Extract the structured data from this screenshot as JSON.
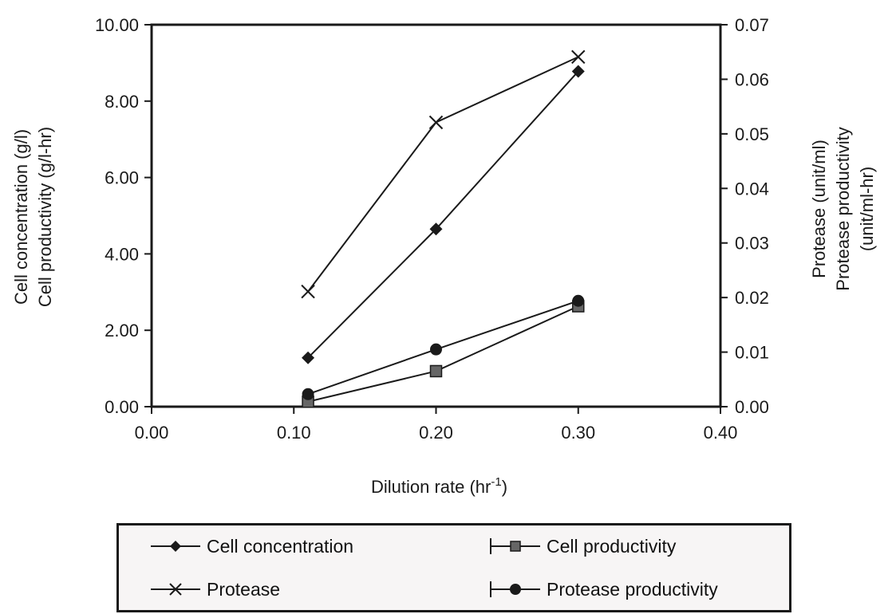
{
  "chart_data": {
    "type": "line",
    "xlabel": "Dilution rate (hr-1)",
    "xlabel_main": "Dilution rate (hr",
    "xlabel_sup": "-1",
    "xlabel_close": ")",
    "ylabel_left": [
      "Cell concentration (g/l)",
      "Cell productivity (g/l-hr)"
    ],
    "ylabel_right": [
      "Protease (unit/ml)",
      "Protease productivity",
      "(unit/ml-hr)"
    ],
    "xlim": [
      0,
      0.4
    ],
    "ylim_left": [
      0,
      10
    ],
    "ylim_right": [
      0,
      0.07
    ],
    "x_ticks": [
      "0.00",
      "0.10",
      "0.20",
      "0.30",
      "0.40"
    ],
    "y_left_ticks": [
      "0.00",
      "2.00",
      "4.00",
      "6.00",
      "8.00",
      "10.00"
    ],
    "y_right_ticks": [
      "0.00",
      "0.01",
      "0.02",
      "0.03",
      "0.04",
      "0.05",
      "0.06",
      "0.07"
    ],
    "grid": false,
    "legend_position": "bottom",
    "series": [
      {
        "name": "Cell concentration",
        "axis": "left",
        "marker": "diamond",
        "x": [
          0.11,
          0.2,
          0.3
        ],
        "y": [
          1.28,
          4.65,
          8.78
        ]
      },
      {
        "name": "Cell productivity",
        "axis": "left",
        "marker": "square",
        "x": [
          0.11,
          0.2,
          0.3
        ],
        "y": [
          0.13,
          0.93,
          2.63
        ]
      },
      {
        "name": "Protease",
        "axis": "right",
        "marker": "x",
        "x": [
          0.11,
          0.2,
          0.3
        ],
        "y": [
          0.0211,
          0.0521,
          0.0641
        ]
      },
      {
        "name": "Protease productivity",
        "axis": "right",
        "marker": "circle",
        "x": [
          0.11,
          0.2,
          0.3
        ],
        "y": [
          0.0023,
          0.0105,
          0.0194
        ]
      }
    ]
  }
}
